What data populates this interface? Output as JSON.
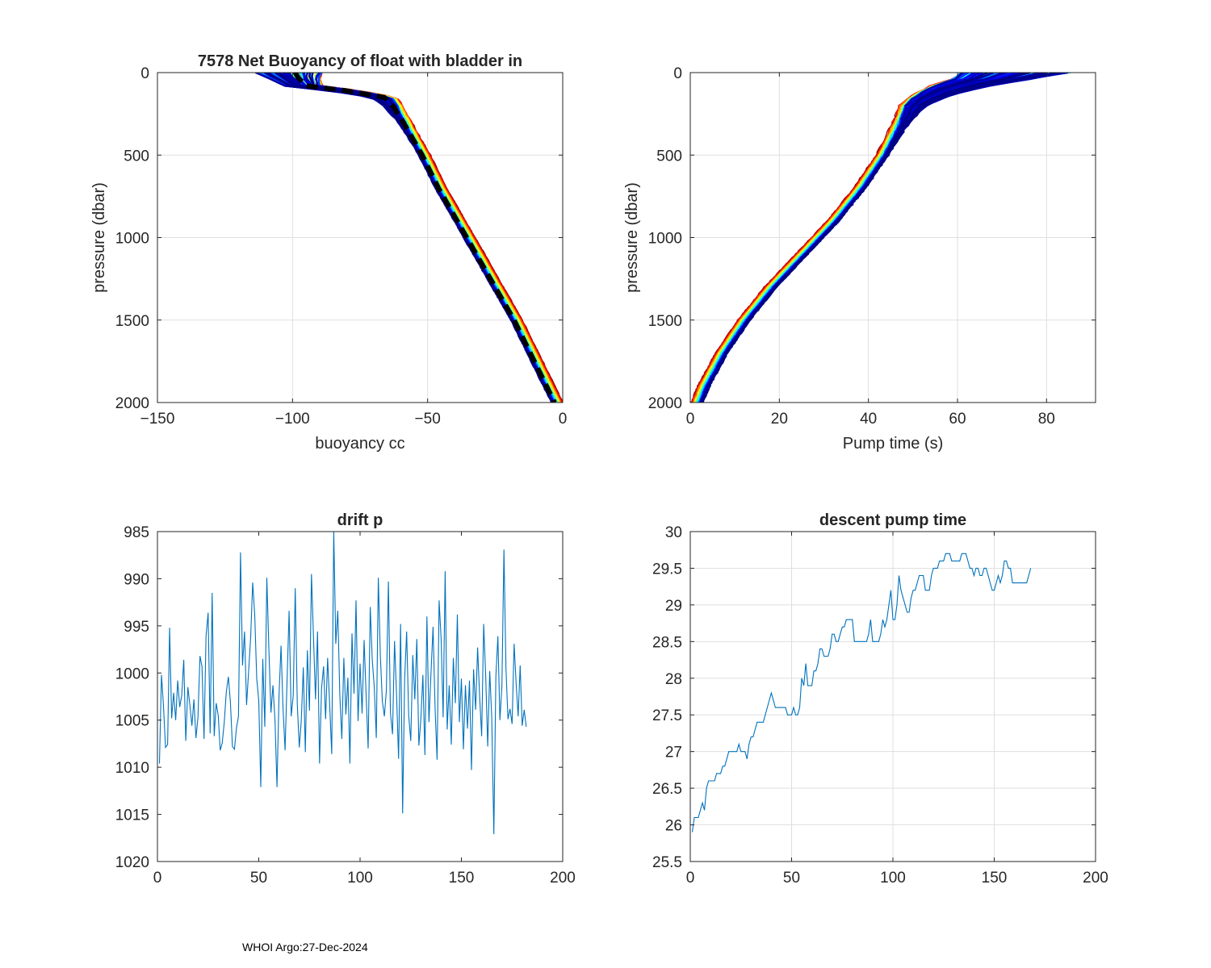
{
  "footer": "WHOI Argo:27-Dec-2024",
  "colors": {
    "axis": "#262626",
    "grid": "#dfdfdf",
    "series": "#0072BD",
    "mean": "#000000"
  },
  "chart_data": [
    {
      "id": "buoyancy",
      "type": "line",
      "title": "7578 Net Buoyancy of float with bladder in",
      "xlabel": "buoyancy cc",
      "ylabel": "pressure (dbar)",
      "xlim": [
        -150,
        0
      ],
      "ylim": [
        0,
        2000
      ],
      "y_reversed": true,
      "xticks": [
        -150,
        -100,
        -50,
        0
      ],
      "yticks": [
        0,
        500,
        1000,
        1500,
        2000
      ],
      "grid": true,
      "colormap": "jet (profiles colored by cycle)",
      "profile_count": 190,
      "mean_profile": {
        "pressure": [
          0,
          30,
          80,
          110,
          150,
          200,
          300,
          500,
          700,
          900,
          1100,
          1300,
          1500,
          1700,
          1900,
          2000
        ],
        "buoyancy": [
          -99,
          -98,
          -95,
          -80,
          -66,
          -63,
          -59,
          -52,
          -46,
          -39,
          -32,
          -25,
          -18,
          -12,
          -6,
          -3
        ]
      },
      "envelope_offset_cc": {
        "red_end": 3,
        "blue_end": -1,
        "surface_spread_cc": 25
      }
    },
    {
      "id": "pumptime",
      "type": "line",
      "title": "",
      "xlabel": "Pump time (s)",
      "ylabel": "pressure (dbar)",
      "xlim": [
        0,
        91
      ],
      "ylim": [
        0,
        2000
      ],
      "y_reversed": true,
      "xticks": [
        0,
        20,
        40,
        60,
        80
      ],
      "yticks": [
        0,
        500,
        1000,
        1500,
        2000
      ],
      "grid": true,
      "colormap": "jet (profiles colored by cycle)",
      "profile_count": 190,
      "mean_profile": {
        "pressure": [
          0,
          40,
          80,
          120,
          160,
          200,
          300,
          500,
          700,
          900,
          1100,
          1300,
          1500,
          1700,
          1900,
          2000
        ],
        "pump_time": [
          68,
          64,
          58,
          54,
          51,
          49,
          47,
          43,
          38,
          32,
          25,
          18,
          12,
          7,
          3,
          1.5
        ]
      },
      "envelope_offset_s": {
        "red_end": -1.2,
        "blue_end": 1.2,
        "surface_spread_s": 25
      }
    },
    {
      "id": "driftp",
      "type": "line",
      "title": "drift p",
      "xlabel": "",
      "ylabel": "",
      "xlim": [
        0,
        200
      ],
      "ylim": [
        985,
        1020
      ],
      "y_reversed": true,
      "xticks": [
        0,
        50,
        100,
        150,
        200
      ],
      "yticks": [
        985,
        990,
        995,
        1000,
        1005,
        1010,
        1015,
        1020
      ],
      "grid": false,
      "series": [
        {
          "name": "drift p",
          "x_start": 1,
          "x_step": 1,
          "values": [
            1009.6,
            1000.2,
            1003.5,
            1007.9,
            1007.6,
            995.2,
            1004.8,
            1002.1,
            1005.0,
            1000.8,
            1003.6,
            1002.4,
            998.6,
            1007.2,
            1001.5,
            1003.4,
            1005.6,
            1002.8,
            1006.9,
            1004.7,
            998.2,
            999.3,
            1007.0,
            996.1,
            993.6,
            1006.4,
            991.5,
            1006.7,
            1003.2,
            1004.5,
            1008.2,
            1007.4,
            1005.2,
            1002.0,
            1000.4,
            1003.1,
            1007.8,
            1008.1,
            1005.8,
            1004.6,
            987.2,
            999.2,
            995.6,
            1003.4,
            999.9,
            996.2,
            990.4,
            993.8,
            1000.6,
            1002.9,
            1012.1,
            998.5,
            1005.7,
            989.9,
            997.6,
            1004.2,
            1001.3,
            1005.0,
            1012.1,
            1002.4,
            997.1,
            1003.8,
            1008.2,
            1000.7,
            993.4,
            1004.6,
            1002.4,
            991.0,
            1003.2,
            1007.9,
            1005.0,
            999.4,
            1008.4,
            997.6,
            1004.0,
            989.5,
            996.2,
            1002.8,
            995.6,
            1009.6,
            1001.6,
            999.3,
            1004.9,
            998.4,
            1003.5,
            1008.6,
            984.9,
            996.9,
            993.4,
            1002.3,
            1007.0,
            998.4,
            1004.4,
            1000.5,
            1009.6,
            995.8,
            1002.2,
            992.3,
            1005.1,
            999.0,
            1004.3,
            996.5,
            1002.3,
            1008.0,
            993.0,
            998.6,
            1001.5,
            1006.9,
            989.9,
            998.1,
            1003.0,
            1004.6,
            1001.8,
            990.3,
            1004.2,
            1006.5,
            996.6,
            1002.3,
            1009.1,
            994.8,
            1014.9,
            1000.7,
            995.6,
            1004.5,
            1007.2,
            998.1,
            1002.8,
            996.4,
            1007.7,
            1004.9,
            1000.2,
            1008.7,
            994.0,
            1005.2,
            999.9,
            995.1,
            1003.7,
            1009.2,
            992.3,
            996.4,
            1004.7,
            989.2,
            1006.0,
            1001.3,
            1007.6,
            998.4,
            1003.2,
            993.8,
            1005.2,
            1000.6,
            1008.1,
            1001.3,
            1005.9,
            1000.8,
            1010.3,
            999.6,
            1003.9,
            997.3,
            1002.5,
            1006.7,
            994.8,
            1000.3,
            1007.8,
            999.8,
            1004.7,
            1017.1,
            1000.4,
            996.1,
            1005.0,
            1001.4,
            986.9,
            999.5,
            1004.9,
            1003.8,
            1005.4,
            996.9,
            1001.1,
            1004.6,
            999.2,
            1005.6,
            1003.9,
            1005.7
          ]
        }
      ]
    },
    {
      "id": "descentpump",
      "type": "line",
      "title": "descent pump time",
      "xlabel": "",
      "ylabel": "",
      "xlim": [
        0,
        200
      ],
      "ylim": [
        25.5,
        30
      ],
      "y_reversed": false,
      "xticks": [
        0,
        50,
        100,
        150,
        200
      ],
      "yticks": [
        25.5,
        26,
        26.5,
        27,
        27.5,
        28,
        28.5,
        29,
        29.5,
        30
      ],
      "grid": true,
      "series": [
        {
          "name": "descent pump time",
          "x_start": 1,
          "x_step": 1,
          "values": [
            25.9,
            26.1,
            26.1,
            26.1,
            26.2,
            26.3,
            26.2,
            26.5,
            26.6,
            26.6,
            26.6,
            26.6,
            26.7,
            26.7,
            26.7,
            26.8,
            26.8,
            26.9,
            27.0,
            27.0,
            27.0,
            27.0,
            27.0,
            27.1,
            27.0,
            27.0,
            27.0,
            26.9,
            27.1,
            27.2,
            27.2,
            27.3,
            27.4,
            27.4,
            27.4,
            27.4,
            27.5,
            27.6,
            27.7,
            27.8,
            27.7,
            27.6,
            27.6,
            27.6,
            27.6,
            27.6,
            27.6,
            27.5,
            27.5,
            27.5,
            27.6,
            27.5,
            27.5,
            27.6,
            28.0,
            27.9,
            28.2,
            27.9,
            27.9,
            27.9,
            28.1,
            28.1,
            28.2,
            28.4,
            28.4,
            28.3,
            28.3,
            28.3,
            28.4,
            28.6,
            28.6,
            28.5,
            28.5,
            28.6,
            28.7,
            28.7,
            28.8,
            28.8,
            28.8,
            28.8,
            28.5,
            28.5,
            28.5,
            28.5,
            28.5,
            28.5,
            28.5,
            28.6,
            28.8,
            28.5,
            28.5,
            28.5,
            28.5,
            28.6,
            28.8,
            28.7,
            28.8,
            29.0,
            29.2,
            28.8,
            28.8,
            29.0,
            29.4,
            29.2,
            29.1,
            29.0,
            28.9,
            28.9,
            29.1,
            29.2,
            29.2,
            29.3,
            29.4,
            29.4,
            29.4,
            29.2,
            29.2,
            29.2,
            29.4,
            29.5,
            29.5,
            29.5,
            29.6,
            29.6,
            29.6,
            29.7,
            29.7,
            29.7,
            29.6,
            29.6,
            29.6,
            29.6,
            29.6,
            29.7,
            29.7,
            29.7,
            29.6,
            29.5,
            29.5,
            29.4,
            29.5,
            29.5,
            29.4,
            29.4,
            29.5,
            29.5,
            29.4,
            29.3,
            29.2,
            29.2,
            29.3,
            29.4,
            29.3,
            29.4,
            29.6,
            29.6,
            29.5,
            29.5,
            29.3,
            29.3,
            29.3,
            29.3,
            29.3,
            29.3,
            29.3,
            29.3,
            29.4,
            29.5
          ]
        }
      ]
    }
  ]
}
